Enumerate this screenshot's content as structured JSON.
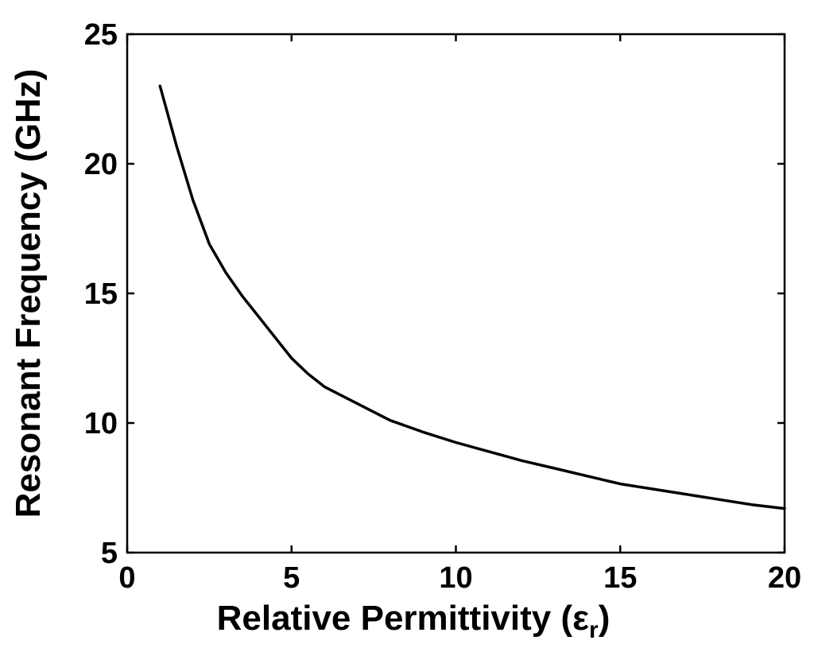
{
  "chart_data": {
    "type": "line",
    "title": "",
    "xlabel": "Relative Permittivity (ε",
    "xlabel_sub": "r",
    "xlabel_close": ")",
    "ylabel": "Resonant Frequency (GHz)",
    "xlim": [
      0,
      20
    ],
    "ylim": [
      5,
      25
    ],
    "xticks": [
      "0",
      "5",
      "10",
      "15",
      "20"
    ],
    "yticks": [
      "5",
      "10",
      "15",
      "20",
      "25"
    ],
    "grid": false,
    "line_color": "#000000",
    "series": [
      {
        "x": [
          1,
          1.5,
          2,
          2.5,
          3,
          3.5,
          4,
          4.5,
          5,
          5.5,
          6,
          7,
          8,
          9,
          10,
          11,
          12,
          13,
          14,
          15,
          16,
          17,
          18,
          19,
          20
        ],
        "values": [
          23.0,
          20.7,
          18.6,
          16.9,
          15.8,
          14.9,
          14.1,
          13.3,
          12.5,
          11.9,
          11.4,
          10.75,
          10.1,
          9.65,
          9.25,
          8.9,
          8.55,
          8.25,
          7.95,
          7.65,
          7.45,
          7.25,
          7.05,
          6.85,
          6.7
        ]
      }
    ]
  }
}
